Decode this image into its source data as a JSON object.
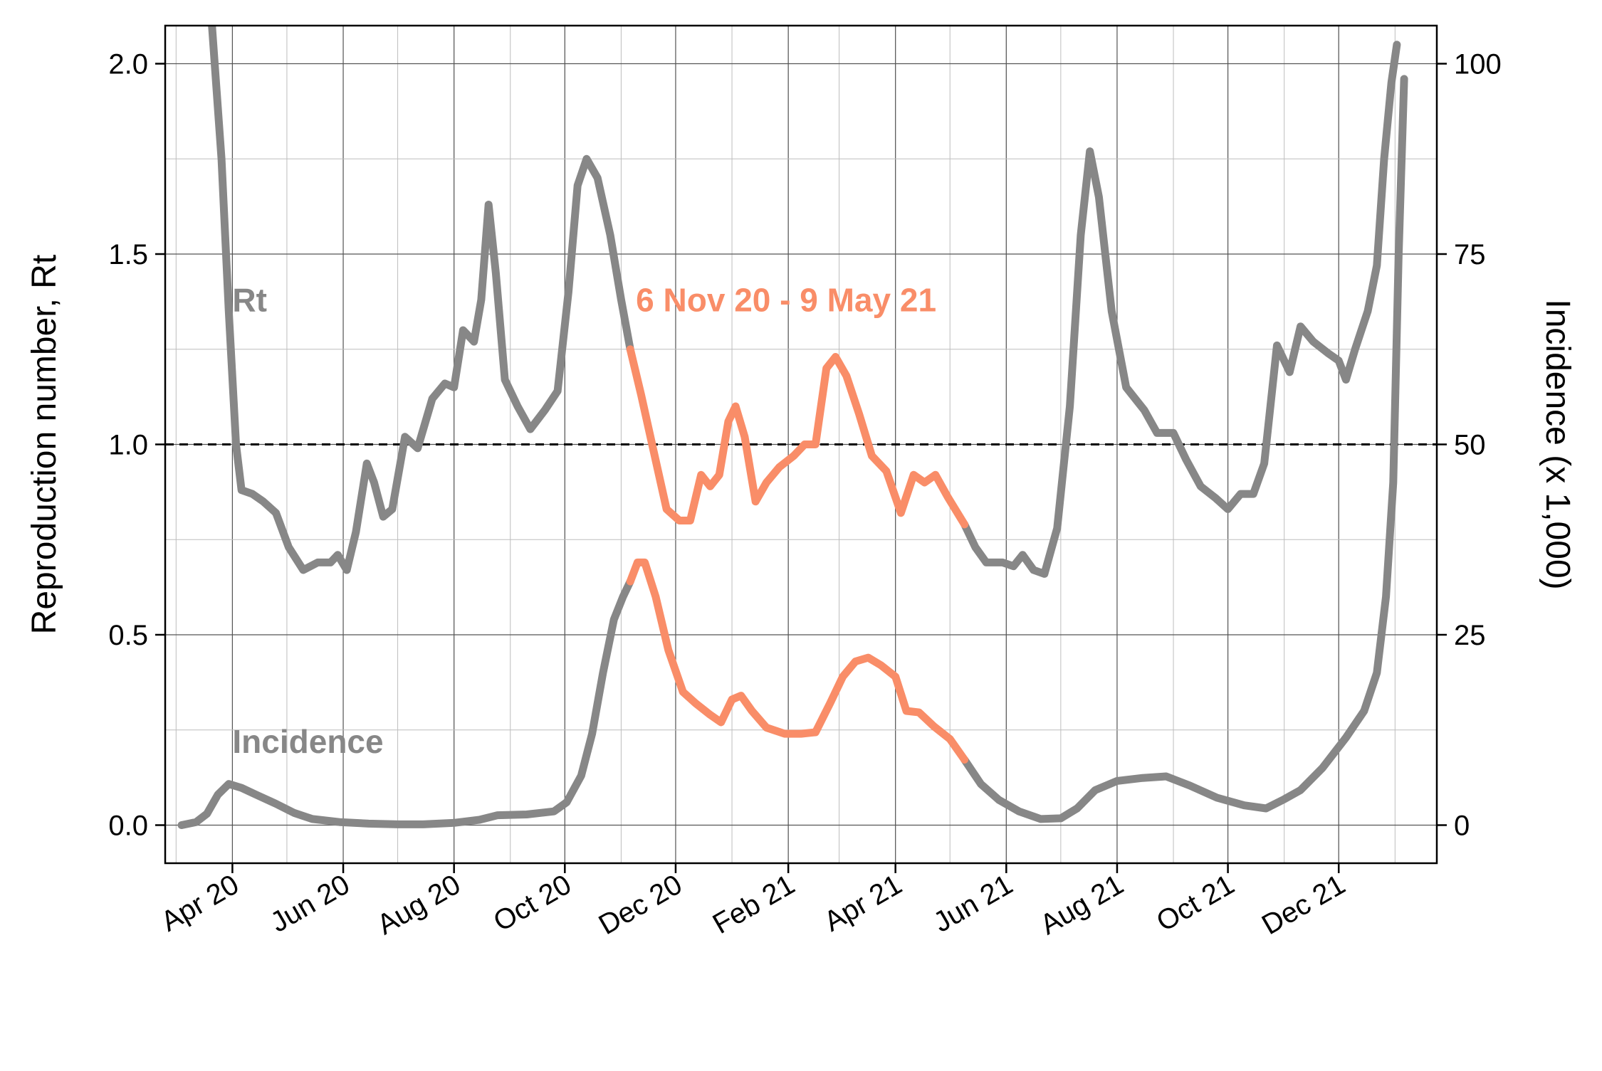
{
  "chart_data": {
    "type": "line",
    "title": "",
    "ylabel": "Reproduction number, Rt",
    "y2label": "Incidence (x 1,000)",
    "ylim": [
      -0.1,
      2.1
    ],
    "y2lim": [
      -5,
      105
    ],
    "xlim": [
      "2020-02-24",
      "2022-01-24"
    ],
    "grid": true,
    "colors": {
      "base": "#878787",
      "highlight": "#f98d68",
      "reference": "#000000"
    },
    "reference_line": {
      "y": 1.0,
      "style": "dashed"
    },
    "highlight_period": {
      "start": "2020-11-06",
      "end": "2021-05-09",
      "label": "6 Nov 20 - 9 May 21",
      "label_x": "2020-11-06",
      "label_y": 1.35
    },
    "x_ticks": [
      {
        "date": "2020-04-01",
        "label": "Apr 20"
      },
      {
        "date": "2020-06-01",
        "label": "Jun 20"
      },
      {
        "date": "2020-08-01",
        "label": "Aug 20"
      },
      {
        "date": "2020-10-01",
        "label": "Oct 20"
      },
      {
        "date": "2020-12-01",
        "label": "Dec 20"
      },
      {
        "date": "2021-02-01",
        "label": "Feb 21"
      },
      {
        "date": "2021-04-01",
        "label": "Apr 21"
      },
      {
        "date": "2021-06-01",
        "label": "Jun 21"
      },
      {
        "date": "2021-08-01",
        "label": "Aug 21"
      },
      {
        "date": "2021-10-01",
        "label": "Oct 21"
      },
      {
        "date": "2021-12-01",
        "label": "Dec 21"
      }
    ],
    "y_ticks": [
      0.0,
      0.5,
      1.0,
      1.5,
      2.0
    ],
    "y_tick_labels": [
      "0.0",
      "0.5",
      "1.0",
      "1.5",
      "2.0"
    ],
    "y2_ticks": [
      0,
      25,
      50,
      75,
      100
    ],
    "y2_tick_labels": [
      "0",
      "25",
      "50",
      "75",
      "100"
    ],
    "series": [
      {
        "name": "Rt",
        "label_x": "2020-04-01",
        "label_y": 1.35,
        "axis": "left",
        "points": [
          [
            "2020-03-20",
            2.15
          ],
          [
            "2020-03-26",
            1.75
          ],
          [
            "2020-03-30",
            1.35
          ],
          [
            "2020-04-03",
            1.0
          ],
          [
            "2020-04-06",
            0.88
          ],
          [
            "2020-04-12",
            0.87
          ],
          [
            "2020-04-18",
            0.85
          ],
          [
            "2020-04-25",
            0.82
          ],
          [
            "2020-05-02",
            0.73
          ],
          [
            "2020-05-10",
            0.67
          ],
          [
            "2020-05-18",
            0.69
          ],
          [
            "2020-05-25",
            0.69
          ],
          [
            "2020-05-29",
            0.71
          ],
          [
            "2020-06-03",
            0.67
          ],
          [
            "2020-06-08",
            0.77
          ],
          [
            "2020-06-14",
            0.95
          ],
          [
            "2020-06-18",
            0.9
          ],
          [
            "2020-06-23",
            0.81
          ],
          [
            "2020-06-28",
            0.83
          ],
          [
            "2020-07-05",
            1.02
          ],
          [
            "2020-07-12",
            0.99
          ],
          [
            "2020-07-20",
            1.12
          ],
          [
            "2020-07-27",
            1.16
          ],
          [
            "2020-08-01",
            1.15
          ],
          [
            "2020-08-06",
            1.3
          ],
          [
            "2020-08-12",
            1.27
          ],
          [
            "2020-08-16",
            1.38
          ],
          [
            "2020-08-20",
            1.63
          ],
          [
            "2020-08-24",
            1.45
          ],
          [
            "2020-08-29",
            1.17
          ],
          [
            "2020-09-05",
            1.1
          ],
          [
            "2020-09-12",
            1.04
          ],
          [
            "2020-09-20",
            1.09
          ],
          [
            "2020-09-27",
            1.14
          ],
          [
            "2020-10-03",
            1.4
          ],
          [
            "2020-10-08",
            1.68
          ],
          [
            "2020-10-13",
            1.75
          ],
          [
            "2020-10-19",
            1.7
          ],
          [
            "2020-10-26",
            1.55
          ],
          [
            "2020-11-01",
            1.38
          ],
          [
            "2020-11-06",
            1.25
          ],
          [
            "2020-11-12",
            1.13
          ],
          [
            "2020-11-19",
            0.98
          ],
          [
            "2020-11-26",
            0.83
          ],
          [
            "2020-12-03",
            0.8
          ],
          [
            "2020-12-09",
            0.8
          ],
          [
            "2020-12-15",
            0.92
          ],
          [
            "2020-12-20",
            0.89
          ],
          [
            "2020-12-25",
            0.92
          ],
          [
            "2020-12-30",
            1.06
          ],
          [
            "2021-01-03",
            1.1
          ],
          [
            "2021-01-08",
            1.02
          ],
          [
            "2021-01-14",
            0.85
          ],
          [
            "2021-01-20",
            0.9
          ],
          [
            "2021-01-27",
            0.94
          ],
          [
            "2021-02-04",
            0.97
          ],
          [
            "2021-02-10",
            1.0
          ],
          [
            "2021-02-16",
            1.0
          ],
          [
            "2021-02-22",
            1.2
          ],
          [
            "2021-02-27",
            1.23
          ],
          [
            "2021-03-05",
            1.18
          ],
          [
            "2021-03-12",
            1.08
          ],
          [
            "2021-03-19",
            0.97
          ],
          [
            "2021-03-27",
            0.93
          ],
          [
            "2021-04-04",
            0.82
          ],
          [
            "2021-04-11",
            0.92
          ],
          [
            "2021-04-17",
            0.9
          ],
          [
            "2021-04-23",
            0.92
          ],
          [
            "2021-04-30",
            0.86
          ],
          [
            "2021-05-09",
            0.79
          ],
          [
            "2021-05-15",
            0.73
          ],
          [
            "2021-05-21",
            0.69
          ],
          [
            "2021-05-30",
            0.69
          ],
          [
            "2021-06-05",
            0.68
          ],
          [
            "2021-06-10",
            0.71
          ],
          [
            "2021-06-16",
            0.67
          ],
          [
            "2021-06-22",
            0.66
          ],
          [
            "2021-06-29",
            0.78
          ],
          [
            "2021-07-06",
            1.1
          ],
          [
            "2021-07-12",
            1.55
          ],
          [
            "2021-07-17",
            1.77
          ],
          [
            "2021-07-22",
            1.65
          ],
          [
            "2021-07-29",
            1.35
          ],
          [
            "2021-08-06",
            1.15
          ],
          [
            "2021-08-16",
            1.09
          ],
          [
            "2021-08-23",
            1.03
          ],
          [
            "2021-09-01",
            1.03
          ],
          [
            "2021-09-08",
            0.96
          ],
          [
            "2021-09-16",
            0.89
          ],
          [
            "2021-09-24",
            0.86
          ],
          [
            "2021-10-01",
            0.83
          ],
          [
            "2021-10-08",
            0.87
          ],
          [
            "2021-10-15",
            0.87
          ],
          [
            "2021-10-21",
            0.95
          ],
          [
            "2021-10-28",
            1.26
          ],
          [
            "2021-11-04",
            1.19
          ],
          [
            "2021-11-10",
            1.31
          ],
          [
            "2021-11-17",
            1.27
          ],
          [
            "2021-11-25",
            1.24
          ],
          [
            "2021-12-01",
            1.22
          ],
          [
            "2021-12-05",
            1.17
          ],
          [
            "2021-12-10",
            1.25
          ],
          [
            "2021-12-17",
            1.35
          ],
          [
            "2021-12-22",
            1.47
          ],
          [
            "2021-12-26",
            1.75
          ],
          [
            "2021-12-30",
            1.95
          ],
          [
            "2022-01-02",
            2.05
          ]
        ]
      },
      {
        "name": "Incidence",
        "label_x": "2020-04-01",
        "label_y": 0.19,
        "axis": "right",
        "points": [
          [
            "2020-03-04",
            0.0
          ],
          [
            "2020-03-12",
            0.4
          ],
          [
            "2020-03-18",
            1.5
          ],
          [
            "2020-03-24",
            4.0
          ],
          [
            "2020-03-30",
            5.4
          ],
          [
            "2020-04-06",
            4.9
          ],
          [
            "2020-04-14",
            4.0
          ],
          [
            "2020-04-25",
            2.8
          ],
          [
            "2020-05-05",
            1.6
          ],
          [
            "2020-05-15",
            0.8
          ],
          [
            "2020-05-30",
            0.4
          ],
          [
            "2020-06-15",
            0.2
          ],
          [
            "2020-07-01",
            0.1
          ],
          [
            "2020-07-15",
            0.1
          ],
          [
            "2020-08-01",
            0.3
          ],
          [
            "2020-08-15",
            0.7
          ],
          [
            "2020-08-25",
            1.3
          ],
          [
            "2020-09-10",
            1.4
          ],
          [
            "2020-09-25",
            1.8
          ],
          [
            "2020-10-02",
            3.0
          ],
          [
            "2020-10-10",
            6.5
          ],
          [
            "2020-10-16",
            12.0
          ],
          [
            "2020-10-22",
            20.0
          ],
          [
            "2020-10-28",
            27.0
          ],
          [
            "2020-11-02",
            30.0
          ],
          [
            "2020-11-06",
            32.0
          ],
          [
            "2020-11-10",
            34.5
          ],
          [
            "2020-11-14",
            34.5
          ],
          [
            "2020-11-20",
            30.0
          ],
          [
            "2020-11-27",
            23.0
          ],
          [
            "2020-12-05",
            17.5
          ],
          [
            "2020-12-12",
            16.0
          ],
          [
            "2020-12-20",
            14.5
          ],
          [
            "2020-12-26",
            13.5
          ],
          [
            "2021-01-01",
            16.5
          ],
          [
            "2021-01-06",
            17.0
          ],
          [
            "2021-01-12",
            15.0
          ],
          [
            "2021-01-20",
            12.8
          ],
          [
            "2021-01-30",
            12.0
          ],
          [
            "2021-02-08",
            12.0
          ],
          [
            "2021-02-16",
            12.2
          ],
          [
            "2021-02-24",
            16.0
          ],
          [
            "2021-03-03",
            19.5
          ],
          [
            "2021-03-10",
            21.5
          ],
          [
            "2021-03-17",
            22.0
          ],
          [
            "2021-03-24",
            21.0
          ],
          [
            "2021-04-01",
            19.5
          ],
          [
            "2021-04-07",
            15.0
          ],
          [
            "2021-04-14",
            14.8
          ],
          [
            "2021-04-22",
            13.0
          ],
          [
            "2021-05-01",
            11.3
          ],
          [
            "2021-05-09",
            8.6
          ],
          [
            "2021-05-18",
            5.4
          ],
          [
            "2021-05-28",
            3.3
          ],
          [
            "2021-06-08",
            1.8
          ],
          [
            "2021-06-20",
            0.8
          ],
          [
            "2021-07-01",
            0.9
          ],
          [
            "2021-07-10",
            2.2
          ],
          [
            "2021-07-20",
            4.6
          ],
          [
            "2021-08-01",
            5.8
          ],
          [
            "2021-08-15",
            6.2
          ],
          [
            "2021-08-28",
            6.4
          ],
          [
            "2021-09-10",
            5.2
          ],
          [
            "2021-09-25",
            3.6
          ],
          [
            "2021-10-10",
            2.6
          ],
          [
            "2021-10-22",
            2.2
          ],
          [
            "2021-11-01",
            3.4
          ],
          [
            "2021-11-10",
            4.6
          ],
          [
            "2021-11-22",
            7.5
          ],
          [
            "2021-12-05",
            11.5
          ],
          [
            "2021-12-15",
            15.0
          ],
          [
            "2021-12-22",
            20.0
          ],
          [
            "2021-12-27",
            30.0
          ],
          [
            "2021-12-31",
            45.0
          ],
          [
            "2022-01-03",
            75.0
          ],
          [
            "2022-01-06",
            98.0
          ]
        ]
      }
    ]
  }
}
